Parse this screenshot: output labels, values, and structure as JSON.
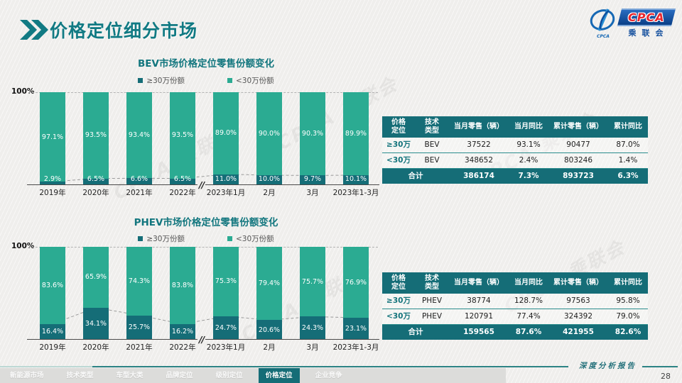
{
  "page": {
    "title": "价格定位细分市场",
    "page_number": "28",
    "report_label": "深度分析报告"
  },
  "logo": {
    "abbr": "CPCA",
    "name": "CPCA",
    "org": "乘联会"
  },
  "watermark": {
    "text": "CPCA 乘联会"
  },
  "chart_data": [
    {
      "type": "bar",
      "subtype": "stacked-percent",
      "title": "BEV市场价格定位零售份额变化",
      "y_axis_label": "100%",
      "ylim": [
        0,
        100
      ],
      "grid": "dashed-top-100",
      "legend_position": "top",
      "axis_break_after_index": 3,
      "axis_break_glyph": "//",
      "categories": [
        "2019年",
        "2020年",
        "2021年",
        "2022年",
        "2023年1月",
        "2月",
        "3月",
        "2023年1-3月"
      ],
      "series": [
        {
          "name": "≥30万份额",
          "color": "#156d77",
          "values": [
            2.9,
            6.5,
            6.6,
            6.5,
            11.0,
            10.0,
            9.7,
            10.1
          ]
        },
        {
          "name": "<30万份额",
          "color": "#2bab92",
          "values": [
            97.1,
            93.5,
            93.4,
            93.5,
            89.0,
            90.0,
            90.3,
            89.9
          ]
        }
      ]
    },
    {
      "type": "bar",
      "subtype": "stacked-percent",
      "title": "PHEV市场价格定位零售份额变化",
      "y_axis_label": "100%",
      "ylim": [
        0,
        100
      ],
      "grid": "dashed-top-100",
      "legend_position": "top",
      "axis_break_after_index": 3,
      "axis_break_glyph": "//",
      "categories": [
        "2019年",
        "2020年",
        "2021年",
        "2022年",
        "2023年1月",
        "2月",
        "3月",
        "2023年1-3月"
      ],
      "series": [
        {
          "name": "≥30万份额",
          "color": "#156d77",
          "values": [
            16.4,
            34.1,
            25.7,
            16.2,
            24.7,
            20.6,
            24.3,
            23.1
          ]
        },
        {
          "name": "<30万份额",
          "color": "#2bab92",
          "values": [
            83.6,
            65.9,
            74.3,
            83.8,
            75.3,
            79.4,
            75.7,
            76.9
          ]
        }
      ]
    },
    {
      "type": "table",
      "title": "BEV价格定位零售数据",
      "headers": [
        "价格\n定位",
        "技术\n类型",
        "当月零售（辆）",
        "当月同比",
        "累计零售（辆）",
        "累计同比"
      ],
      "rows": [
        [
          "≥30万",
          "BEV",
          "37522",
          "93.1%",
          "90477",
          "87.0%"
        ],
        [
          "<30万",
          "BEV",
          "348652",
          "2.4%",
          "803246",
          "1.4%"
        ]
      ],
      "total_row": [
        "合计",
        "386174",
        "7.3%",
        "893723",
        "6.3%"
      ]
    },
    {
      "type": "table",
      "title": "PHEV价格定位零售数据",
      "headers": [
        "价格\n定位",
        "技术\n类型",
        "当月零售（辆）",
        "当月同比",
        "累计零售（辆）",
        "累计同比"
      ],
      "rows": [
        [
          "≥30万",
          "PHEV",
          "38774",
          "128.7%",
          "97563",
          "95.8%"
        ],
        [
          "<30万",
          "PHEV",
          "120791",
          "77.4%",
          "324392",
          "79.0%"
        ]
      ],
      "total_row": [
        "合计",
        "159565",
        "87.6%",
        "421955",
        "82.6%"
      ]
    }
  ],
  "footer": {
    "tabs": [
      {
        "label": "新能源市场",
        "active": false
      },
      {
        "label": "技术类型",
        "active": false
      },
      {
        "label": "车型大类",
        "active": false
      },
      {
        "label": "品牌定位",
        "active": false
      },
      {
        "label": "级别定位",
        "active": false
      },
      {
        "label": "价格定位",
        "active": true
      },
      {
        "label": "企业竞争",
        "active": false
      }
    ]
  }
}
